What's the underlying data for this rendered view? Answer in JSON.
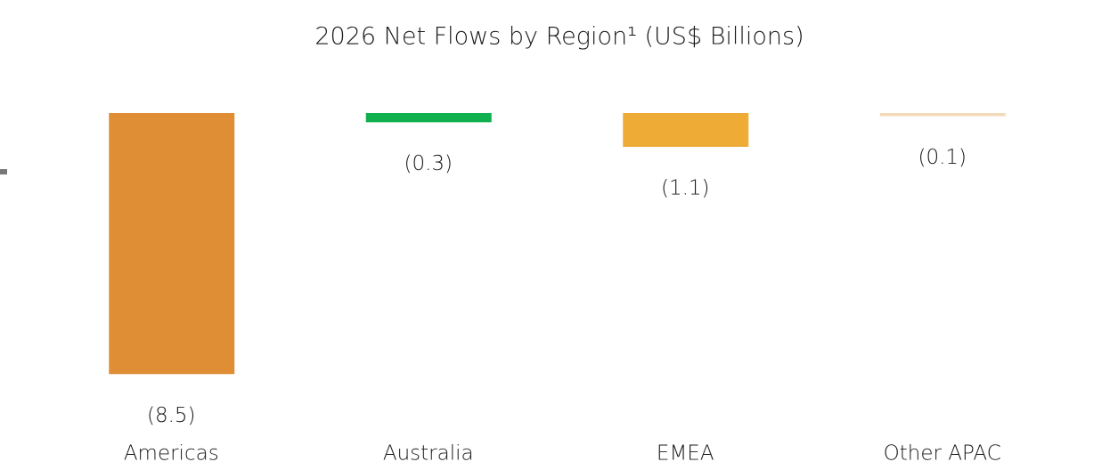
{
  "chart_data": {
    "type": "bar",
    "title": "2026 Net Flows by Region¹ (US$ Billions)",
    "categories": [
      "Americas",
      "Australia",
      "EMEA",
      "Other APAC"
    ],
    "values": [
      -8.5,
      -0.3,
      -1.1,
      -0.1
    ],
    "value_labels": [
      "(8.5)",
      "(0.3)",
      "(1.1)",
      "(0.1)"
    ],
    "colors": [
      "#e08e35",
      "#10b04f",
      "#eeac36",
      "#f2d9b8"
    ],
    "ylim": [
      -9,
      0
    ]
  }
}
